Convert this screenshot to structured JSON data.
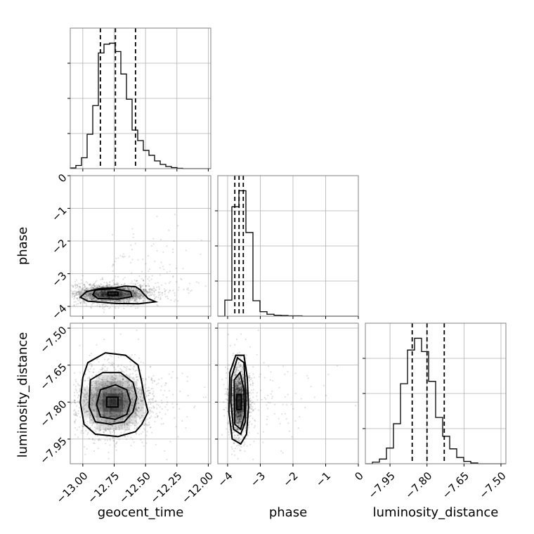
{
  "chart_data": {
    "type": "corner",
    "parameters": [
      "geocent_time",
      "phase",
      "luminosity_distance"
    ],
    "ranges": {
      "geocent_time": [
        -13.1,
        -11.98
      ],
      "phase": [
        -4.3,
        0.0
      ],
      "luminosity_distance": [
        -8.05,
        -7.48
      ]
    },
    "ticks": {
      "geocent_time": [
        -13.0,
        -12.75,
        -12.5,
        -12.25,
        -12.0
      ],
      "phase": [
        0,
        -1,
        -2,
        -3,
        -4
      ],
      "luminosity_distance": [
        -7.5,
        -7.65,
        -7.8,
        -7.95
      ]
    },
    "tick_labels": {
      "geocent_time": [
        "−13.00",
        "−12.75",
        "−12.50",
        "−12.25",
        "−12.00"
      ],
      "phase_y": [
        "0",
        "−1",
        "−2",
        "−3",
        "−4"
      ],
      "phase_x": [
        "−4",
        "−3",
        "−2",
        "−1",
        "0"
      ],
      "luminosity_distance": [
        "−7.50",
        "−7.65",
        "−7.80",
        "−7.95"
      ]
    },
    "quantiles": {
      "geocent_time": [
        -12.86,
        -12.74,
        -12.58
      ],
      "phase": [
        -3.78,
        -3.65,
        -3.52
      ],
      "luminosity_distance": [
        -7.86,
        -7.8,
        -7.73
      ]
    },
    "histograms": {
      "geocent_time": {
        "x_start": -13.1,
        "x_end": -11.98,
        "counts": [
          2,
          9,
          31,
          98,
          180,
          330,
          355,
          358,
          334,
          270,
          198,
          110,
          80,
          52,
          38,
          22,
          12,
          6,
          3,
          1,
          0,
          0,
          0,
          0,
          0
        ]
      },
      "phase": {
        "x_start": -4.3,
        "x_end": 0.0,
        "counts": [
          0,
          50,
          340,
          390,
          260,
          48,
          14,
          6,
          3,
          2,
          1,
          1,
          0,
          0,
          0,
          0,
          0,
          0,
          0,
          0
        ]
      },
      "luminosity_distance": {
        "x_start": -8.05,
        "x_end": -7.48,
        "counts": [
          0,
          4,
          12,
          40,
          102,
          204,
          290,
          320,
          286,
          210,
          118,
          70,
          38,
          16,
          6,
          2,
          0,
          0,
          0,
          0
        ]
      }
    },
    "pairs": [
      {
        "x": "geocent_time",
        "y": "phase",
        "center": [
          -12.77,
          -3.62
        ],
        "spread": [
          0.13,
          0.12
        ],
        "corr": 0.1,
        "contours": [
          [
            [
              -12.8,
              -3.56
            ],
            [
              -12.72,
              -3.56
            ],
            [
              -12.72,
              -3.66
            ],
            [
              -12.8,
              -3.66
            ]
          ],
          [
            [
              -12.9,
              -3.5
            ],
            [
              -12.75,
              -3.46
            ],
            [
              -12.62,
              -3.55
            ],
            [
              -12.61,
              -3.7
            ],
            [
              -12.72,
              -3.78
            ],
            [
              -12.88,
              -3.76
            ],
            [
              -12.92,
              -3.64
            ]
          ],
          [
            [
              -12.97,
              -3.55
            ],
            [
              -12.86,
              -3.45
            ],
            [
              -12.74,
              -3.43
            ],
            [
              -12.66,
              -3.38
            ],
            [
              -12.58,
              -3.4
            ],
            [
              -12.54,
              -3.5
            ],
            [
              -12.52,
              -3.6
            ],
            [
              -12.48,
              -3.76
            ],
            [
              -12.42,
              -3.86
            ],
            [
              -12.55,
              -3.92
            ],
            [
              -12.74,
              -3.91
            ],
            [
              -12.96,
              -3.84
            ],
            [
              -13.02,
              -3.72
            ]
          ]
        ]
      },
      {
        "x": "geocent_time",
        "y": "luminosity_distance",
        "center": [
          -12.76,
          -7.8
        ],
        "spread": [
          0.12,
          0.055
        ],
        "corr": 0.0,
        "contours": [
          [
            [
              -12.81,
              -7.78
            ],
            [
              -12.72,
              -7.78
            ],
            [
              -12.72,
              -7.82
            ],
            [
              -12.81,
              -7.82
            ]
          ],
          [
            [
              -12.86,
              -7.75
            ],
            [
              -12.74,
              -7.73
            ],
            [
              -12.65,
              -7.75
            ],
            [
              -12.62,
              -7.8
            ],
            [
              -12.65,
              -7.85
            ],
            [
              -12.74,
              -7.87
            ],
            [
              -12.86,
              -7.86
            ],
            [
              -12.89,
              -7.81
            ]
          ],
          [
            [
              -12.94,
              -7.71
            ],
            [
              -12.84,
              -7.68
            ],
            [
              -12.7,
              -7.68
            ],
            [
              -12.6,
              -7.72
            ],
            [
              -12.57,
              -7.78
            ],
            [
              -12.6,
              -7.84
            ],
            [
              -12.67,
              -7.88
            ],
            [
              -12.78,
              -7.89
            ],
            [
              -12.9,
              -7.88
            ],
            [
              -12.95,
              -7.82
            ]
          ],
          [
            [
              -12.96,
              -7.64
            ],
            [
              -12.82,
              -7.6
            ],
            [
              -12.66,
              -7.61
            ],
            [
              -12.56,
              -7.65
            ],
            [
              -12.53,
              -7.72
            ],
            [
              -12.51,
              -7.78
            ],
            [
              -12.48,
              -7.84
            ],
            [
              -12.53,
              -7.89
            ],
            [
              -12.58,
              -7.92
            ],
            [
              -12.72,
              -7.94
            ],
            [
              -12.9,
              -7.93
            ],
            [
              -12.99,
              -7.89
            ],
            [
              -13.02,
              -7.8
            ],
            [
              -13.0,
              -7.7
            ]
          ]
        ]
      },
      {
        "x": "phase",
        "y": "luminosity_distance",
        "center": [
          -3.65,
          -7.8
        ],
        "spread": [
          0.12,
          0.055
        ],
        "corr": 0.0,
        "contours": [
          [
            [
              -3.72,
              -7.77
            ],
            [
              -3.58,
              -7.77
            ],
            [
              -3.58,
              -7.83
            ],
            [
              -3.72,
              -7.83
            ]
          ],
          [
            [
              -3.8,
              -7.71
            ],
            [
              -3.62,
              -7.68
            ],
            [
              -3.5,
              -7.75
            ],
            [
              -3.48,
              -7.85
            ],
            [
              -3.6,
              -7.91
            ],
            [
              -3.78,
              -7.89
            ]
          ],
          [
            [
              -3.88,
              -7.7
            ],
            [
              -3.7,
              -7.62
            ],
            [
              -3.5,
              -7.64
            ],
            [
              -3.44,
              -7.78
            ],
            [
              -3.46,
              -7.88
            ],
            [
              -3.6,
              -7.93
            ],
            [
              -3.82,
              -7.91
            ],
            [
              -3.9,
              -7.8
            ]
          ],
          [
            [
              -3.93,
              -7.68
            ],
            [
              -3.75,
              -7.61
            ],
            [
              -3.5,
              -7.61
            ],
            [
              -3.4,
              -7.7
            ],
            [
              -3.36,
              -7.82
            ],
            [
              -3.42,
              -7.93
            ],
            [
              -3.6,
              -7.97
            ],
            [
              -3.86,
              -7.95
            ],
            [
              -3.96,
              -7.84
            ]
          ]
        ]
      }
    ],
    "scatter_points": 1600
  }
}
